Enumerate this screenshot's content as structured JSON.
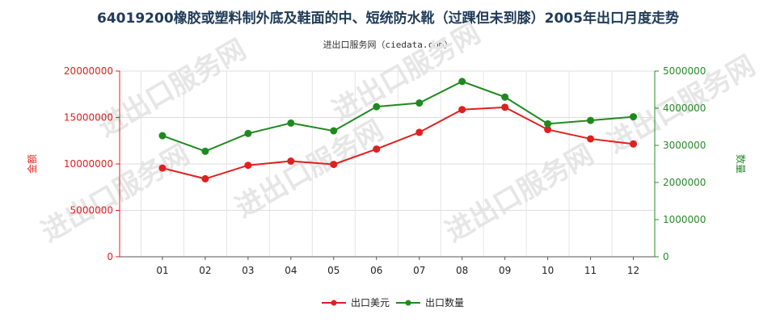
{
  "chart_data": {
    "type": "line",
    "title": "64019200橡胶或塑料制外底及鞋面的中、短统防水靴（过踝但未到膝）2005年出口月度走势",
    "source": "进出口服务网（ciedata.com）",
    "categories": [
      "01",
      "02",
      "03",
      "04",
      "05",
      "06",
      "07",
      "08",
      "09",
      "10",
      "11",
      "12"
    ],
    "y_left": {
      "label": "金额",
      "ylim": [
        0,
        20000000
      ],
      "ticks": [
        "0",
        "5000000",
        "10000000",
        "15000000",
        "20000000"
      ],
      "color": "#e01f1f"
    },
    "y_right": {
      "label": "数量",
      "ylim": [
        0,
        5000000
      ],
      "ticks": [
        "0",
        "1000000",
        "2000000",
        "3000000",
        "4000000",
        "5000000"
      ],
      "color": "#2a8a2a"
    },
    "series": [
      {
        "name": "出口美元",
        "axis": "left",
        "color": "#e01f1f",
        "values": [
          9550000,
          8400000,
          9850000,
          10300000,
          9950000,
          11600000,
          13400000,
          15850000,
          16100000,
          13700000,
          12700000,
          12150000
        ]
      },
      {
        "name": "出口数量",
        "axis": "right",
        "color": "#1e8a1e",
        "values": [
          3260000,
          2840000,
          3320000,
          3600000,
          3390000,
          4040000,
          4140000,
          4720000,
          4300000,
          3580000,
          3670000,
          3770000
        ]
      }
    ],
    "grid": true,
    "legend": "bottom-center",
    "watermark": "进出口服务网"
  }
}
